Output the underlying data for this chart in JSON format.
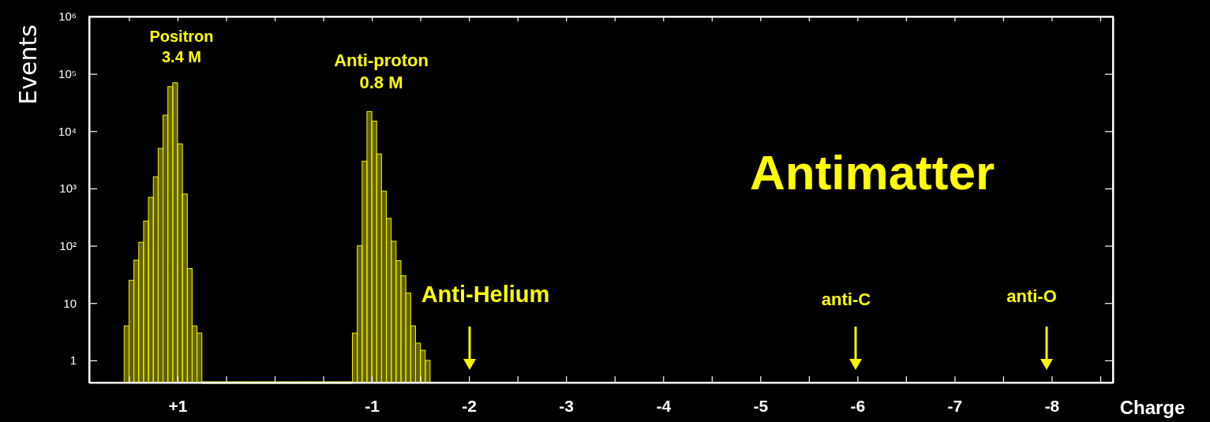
{
  "chart_data": {
    "type": "histogram",
    "title": "Antimatter",
    "xlabel": "Charge",
    "ylabel": "Events",
    "bins": [
      -1.6,
      -1.55,
      -1.5,
      -1.45,
      -1.4,
      -1.35,
      -1.3,
      -1.25,
      -1.2,
      -1.15,
      -1.1,
      -1.05,
      -1,
      -0.95,
      -0.9,
      -0.85,
      -0.8,
      -0.75,
      -0.7,
      -0.65,
      -0.6,
      -0.55,
      -0.5,
      -0.45,
      -0.4,
      -0.35,
      -0.3,
      -0.25,
      -0.2,
      -0.15,
      -0.1,
      -0.05,
      0,
      0.05,
      0.1,
      0.15,
      0.2,
      0.25,
      0.3,
      0.35,
      0.4,
      0.45,
      0.5,
      0.55,
      0.6,
      0.65,
      0.7,
      0.75,
      0.8,
      0.85,
      0.9,
      0.95,
      1,
      1.05,
      1.1,
      1.15,
      1.2,
      1.25,
      1.3,
      1.35,
      1.4,
      1.45,
      1.5,
      1.55
    ],
    "values": [
      1,
      1.5,
      2,
      4,
      15,
      30,
      55,
      120,
      300,
      900,
      4000,
      15000,
      22000,
      3000,
      100,
      3,
      null,
      null,
      null,
      null,
      null,
      null,
      null,
      null,
      null,
      null,
      null,
      null,
      null,
      null,
      null,
      null,
      null,
      null,
      null,
      null,
      null,
      null,
      null,
      null,
      null,
      null,
      null,
      null,
      null,
      null,
      null,
      3,
      4,
      40,
      800,
      6000,
      70000,
      60000,
      19000,
      5000,
      1600,
      700,
      270,
      115,
      56,
      25,
      4
    ],
    "color": "#f5f500",
    "xlim": [
      1.91,
      -8.63
    ],
    "xticks": [
      {
        "value": 1.5,
        "label": null
      },
      {
        "value": 1,
        "label": "+1"
      },
      {
        "value": 0.5,
        "label": null
      },
      {
        "value": 0,
        "label": null
      },
      {
        "value": -0.5,
        "label": null
      },
      -1,
      {
        "value": -1.5,
        "label": null
      },
      -2,
      {
        "value": -2.5,
        "label": null
      },
      -3,
      {
        "value": -3.5,
        "label": null
      },
      -4,
      {
        "value": -4.5,
        "label": null
      },
      -5,
      {
        "value": -5.5,
        "label": null
      },
      -6,
      {
        "value": -6.5,
        "label": null
      },
      -7,
      {
        "value": -7.5,
        "label": null
      },
      -8,
      {
        "value": -8.5,
        "label": null
      }
    ],
    "log": true,
    "ylim": [
      0.41,
      1000000
    ],
    "yticks": [
      1,
      10,
      {
        "value": 100,
        "label": "10²"
      },
      {
        "value": 1000,
        "label": "10³"
      },
      {
        "value": 10000,
        "label": "10⁴"
      },
      {
        "value": 100000,
        "label": "10⁵"
      },
      {
        "value": 1000000,
        "label": "10⁶"
      }
    ],
    "annotations": [
      "Positron\n3.4 M",
      "Anti-proton\n0.8 M",
      "Anti-Helium",
      "anti-C",
      "anti-O"
    ]
  }
}
